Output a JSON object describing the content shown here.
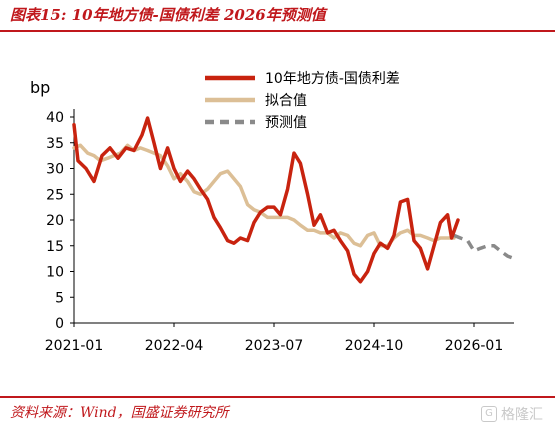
{
  "title": "图表15:  10年地方债-国债利差 2026年预测值",
  "source": "资料来源：Wind，国盛证券研究所",
  "watermark": "格隆汇",
  "colors": {
    "accent": "#c0181c",
    "spread": "#c8230f",
    "fit": "#dcbf96",
    "forecast": "#8a8a8a"
  },
  "chart_data": {
    "type": "line",
    "ylabel": "bp",
    "ylim": [
      0,
      40
    ],
    "yticks": [
      0,
      5,
      10,
      15,
      20,
      25,
      30,
      35,
      40
    ],
    "xlim": [
      2021.0,
      2026.5
    ],
    "xticks": [
      {
        "label": "2021-01",
        "x": 2021.0
      },
      {
        "label": "2022-04",
        "x": 2022.25
      },
      {
        "label": "2023-07",
        "x": 2023.5
      },
      {
        "label": "2024-10",
        "x": 2024.75
      },
      {
        "label": "2026-01",
        "x": 2026.0
      }
    ],
    "legend_position": "top-right",
    "series": [
      {
        "name": "10年地方债-国债利差",
        "color": "#c8230f",
        "style": "solid",
        "points": [
          [
            2021.0,
            38.5
          ],
          [
            2021.05,
            31.5
          ],
          [
            2021.15,
            30.0
          ],
          [
            2021.25,
            27.5
          ],
          [
            2021.35,
            32.5
          ],
          [
            2021.45,
            34.0
          ],
          [
            2021.55,
            32.0
          ],
          [
            2021.65,
            34.0
          ],
          [
            2021.75,
            33.5
          ],
          [
            2021.85,
            36.5
          ],
          [
            2021.92,
            39.8
          ],
          [
            2022.0,
            35.0
          ],
          [
            2022.08,
            30.0
          ],
          [
            2022.17,
            34.0
          ],
          [
            2022.25,
            30.0
          ],
          [
            2022.33,
            27.5
          ],
          [
            2022.42,
            29.5
          ],
          [
            2022.5,
            28.0
          ],
          [
            2022.58,
            26.0
          ],
          [
            2022.67,
            24.0
          ],
          [
            2022.75,
            20.5
          ],
          [
            2022.83,
            18.5
          ],
          [
            2022.92,
            16.0
          ],
          [
            2023.0,
            15.5
          ],
          [
            2023.08,
            16.5
          ],
          [
            2023.17,
            16.0
          ],
          [
            2023.25,
            19.5
          ],
          [
            2023.33,
            21.5
          ],
          [
            2023.42,
            22.5
          ],
          [
            2023.5,
            22.5
          ],
          [
            2023.58,
            21.0
          ],
          [
            2023.67,
            26.0
          ],
          [
            2023.75,
            33.0
          ],
          [
            2023.83,
            31.0
          ],
          [
            2023.92,
            25.0
          ],
          [
            2024.0,
            19.0
          ],
          [
            2024.08,
            21.0
          ],
          [
            2024.17,
            17.5
          ],
          [
            2024.25,
            18.0
          ],
          [
            2024.33,
            16.0
          ],
          [
            2024.42,
            14.0
          ],
          [
            2024.5,
            9.5
          ],
          [
            2024.58,
            8.0
          ],
          [
            2024.67,
            10.0
          ],
          [
            2024.75,
            13.5
          ],
          [
            2024.83,
            15.5
          ],
          [
            2024.92,
            14.5
          ],
          [
            2025.0,
            17.0
          ],
          [
            2025.08,
            23.5
          ],
          [
            2025.17,
            24.0
          ],
          [
            2025.25,
            16.0
          ],
          [
            2025.33,
            14.5
          ],
          [
            2025.42,
            10.5
          ],
          [
            2025.5,
            15.0
          ],
          [
            2025.58,
            19.5
          ],
          [
            2025.67,
            21.0
          ],
          [
            2025.72,
            16.5
          ],
          [
            2025.8,
            20.0
          ]
        ]
      },
      {
        "name": "拟合值",
        "color": "#dcbf96",
        "style": "solid",
        "points": [
          [
            2021.0,
            34.0
          ],
          [
            2021.08,
            34.5
          ],
          [
            2021.17,
            33.0
          ],
          [
            2021.25,
            32.5
          ],
          [
            2021.33,
            31.5
          ],
          [
            2021.42,
            32.0
          ],
          [
            2021.5,
            32.5
          ],
          [
            2021.58,
            33.0
          ],
          [
            2021.67,
            34.5
          ],
          [
            2021.75,
            33.5
          ],
          [
            2021.83,
            34.0
          ],
          [
            2021.92,
            33.5
          ],
          [
            2022.0,
            33.0
          ],
          [
            2022.08,
            32.5
          ],
          [
            2022.17,
            30.5
          ],
          [
            2022.25,
            28.0
          ],
          [
            2022.33,
            29.0
          ],
          [
            2022.42,
            27.5
          ],
          [
            2022.5,
            25.5
          ],
          [
            2022.58,
            25.0
          ],
          [
            2022.67,
            26.0
          ],
          [
            2022.75,
            27.5
          ],
          [
            2022.83,
            29.0
          ],
          [
            2022.92,
            29.5
          ],
          [
            2023.0,
            28.0
          ],
          [
            2023.08,
            26.5
          ],
          [
            2023.17,
            23.0
          ],
          [
            2023.25,
            22.0
          ],
          [
            2023.33,
            21.5
          ],
          [
            2023.42,
            20.5
          ],
          [
            2023.5,
            20.5
          ],
          [
            2023.58,
            20.5
          ],
          [
            2023.67,
            20.5
          ],
          [
            2023.75,
            20.0
          ],
          [
            2023.83,
            19.0
          ],
          [
            2023.92,
            18.0
          ],
          [
            2024.0,
            18.0
          ],
          [
            2024.08,
            17.5
          ],
          [
            2024.17,
            17.5
          ],
          [
            2024.25,
            16.5
          ],
          [
            2024.33,
            17.5
          ],
          [
            2024.42,
            17.0
          ],
          [
            2024.5,
            15.5
          ],
          [
            2024.58,
            15.0
          ],
          [
            2024.67,
            17.0
          ],
          [
            2024.75,
            17.5
          ],
          [
            2024.83,
            15.0
          ],
          [
            2024.92,
            15.0
          ],
          [
            2025.0,
            16.5
          ],
          [
            2025.08,
            17.5
          ],
          [
            2025.17,
            18.0
          ],
          [
            2025.25,
            17.0
          ],
          [
            2025.33,
            17.0
          ],
          [
            2025.42,
            16.5
          ],
          [
            2025.5,
            16.0
          ],
          [
            2025.58,
            16.5
          ],
          [
            2025.67,
            16.5
          ],
          [
            2025.75,
            16.5
          ]
        ]
      },
      {
        "name": "预测值",
        "color": "#8a8a8a",
        "style": "dashed",
        "points": [
          [
            2025.75,
            17.0
          ],
          [
            2025.83,
            16.5
          ],
          [
            2025.92,
            16.0
          ],
          [
            2026.0,
            14.0
          ],
          [
            2026.08,
            14.5
          ],
          [
            2026.17,
            15.0
          ],
          [
            2026.25,
            15.0
          ],
          [
            2026.33,
            14.0
          ],
          [
            2026.42,
            13.0
          ],
          [
            2026.5,
            12.5
          ]
        ]
      }
    ]
  }
}
